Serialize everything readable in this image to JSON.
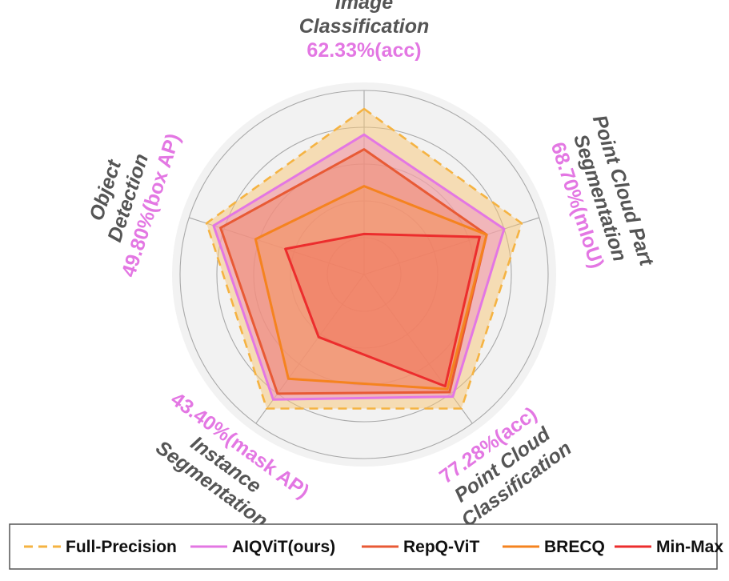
{
  "chart_data": {
    "type": "radar",
    "axes": [
      {
        "name_lines": [
          "Image",
          "Classification"
        ],
        "value_label": "62.33%(acc)"
      },
      {
        "name_lines": [
          "Point Cloud Part",
          "Segmentation"
        ],
        "value_label": "68.70%(mIoU)"
      },
      {
        "name_lines": [
          "Point Cloud",
          "Classification"
        ],
        "value_label": "77.28%(acc)"
      },
      {
        "name_lines": [
          "Instance",
          "Segmentation"
        ],
        "value_label": "43.40%(mask AP)"
      },
      {
        "name_lines": [
          "Object",
          "Detection"
        ],
        "value_label": "49.80%(box AP)"
      }
    ],
    "rlim": [
      0,
      1
    ],
    "rings": [
      0.2,
      0.4,
      0.6,
      0.8,
      1.0
    ],
    "grid": true,
    "legend_position": "bottom",
    "value_label_color": "#e377e3",
    "series": [
      {
        "name": "Full-Precision",
        "color": "#f5b342",
        "fill": "#f7c676",
        "fill_opacity": 0.5,
        "dash": true,
        "values": [
          0.9,
          0.9,
          0.9,
          0.9,
          0.9
        ]
      },
      {
        "name": "AIQViT(ours)",
        "color": "#e377e3",
        "fill": "#ee8fbf",
        "fill_opacity": 0.5,
        "dash": false,
        "values": [
          0.76,
          0.8,
          0.82,
          0.84,
          0.86
        ]
      },
      {
        "name": "RepQ-ViT",
        "color": "#e85a35",
        "fill": "#f08060",
        "fill_opacity": 0.45,
        "dash": false,
        "values": [
          0.68,
          0.7,
          0.79,
          0.8,
          0.82
        ]
      },
      {
        "name": "BRECQ",
        "color": "#f5831f",
        "fill": "#f59a5a",
        "fill_opacity": 0.35,
        "dash": false,
        "values": [
          0.48,
          0.7,
          0.77,
          0.7,
          0.62
        ]
      },
      {
        "name": "Min-Max",
        "color": "#ec2d2d",
        "fill": "#f06050",
        "fill_opacity": 0.35,
        "dash": false,
        "values": [
          0.22,
          0.66,
          0.75,
          0.42,
          0.45
        ]
      }
    ]
  }
}
